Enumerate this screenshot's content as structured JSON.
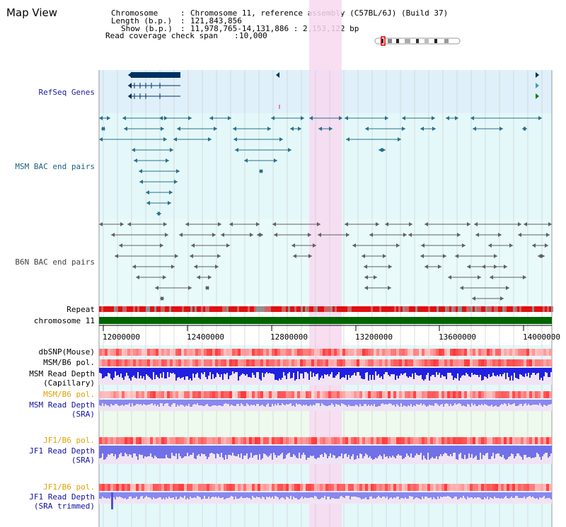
{
  "view_title": "Map View",
  "info": {
    "chromosome_label": "Chromosome",
    "chromosome_value": "Chromosome 11, reference assembly (C57BL/6J) (Build 37)",
    "length_label": "Length (b.p.)",
    "length_value": "121,843,856",
    "show_label": "Show (b.p.)",
    "show_value": "11,978,765-14,131,886 : 2,153,122 bp",
    "span_label": "Read coverage check span",
    "span_value": "10,000"
  },
  "tracks": {
    "refseq": "RefSeq Genes",
    "msm_bac": "MSM BAC end pairs",
    "b6n_bac": "B6N BAC end pairs",
    "repeat": "Repeat",
    "chromosome": "chromosome 11",
    "dbsnp": "dbSNP(Mouse)",
    "msm_b6_pol_1": "MSM/B6 pol.",
    "msm_read_depth_cap_1": "MSM Read Depth",
    "msm_read_depth_cap_2": "(Capillary)",
    "msm_b6_pol_2": "MSM/B6 pol.",
    "msm_read_depth_sra_1": "MSM Read Depth",
    "msm_read_depth_sra_2": "(SRA)",
    "jf1_b6_pol_1": "JF1/B6 pol.",
    "jf1_read_depth_1": "JF1 Read Depth",
    "jf1_read_depth_2": "(SRA)",
    "jf1_b6_pol_2": "JF1/B6 pol.",
    "jf1_read_depth_trim_1": "JF1 Read Depth",
    "jf1_read_depth_trim_2": "(SRA trimmed)"
  },
  "axis_ticks": [
    "12000000",
    "12400000",
    "12800000",
    "13200000",
    "13600000",
    "14000000"
  ],
  "colors": {
    "refseq_bg": "#dff0fa",
    "msm_bg": "#e4f8fa",
    "b6n_bg": "#e8fafa",
    "highlight": "#f8d8f0",
    "gene": "#003060",
    "msm_feature": "#2a7088",
    "b6n_feature": "#606060",
    "chromosome": "#006400",
    "depth_capillary": "#2020e0",
    "depth_sra": "#8888f0"
  }
}
